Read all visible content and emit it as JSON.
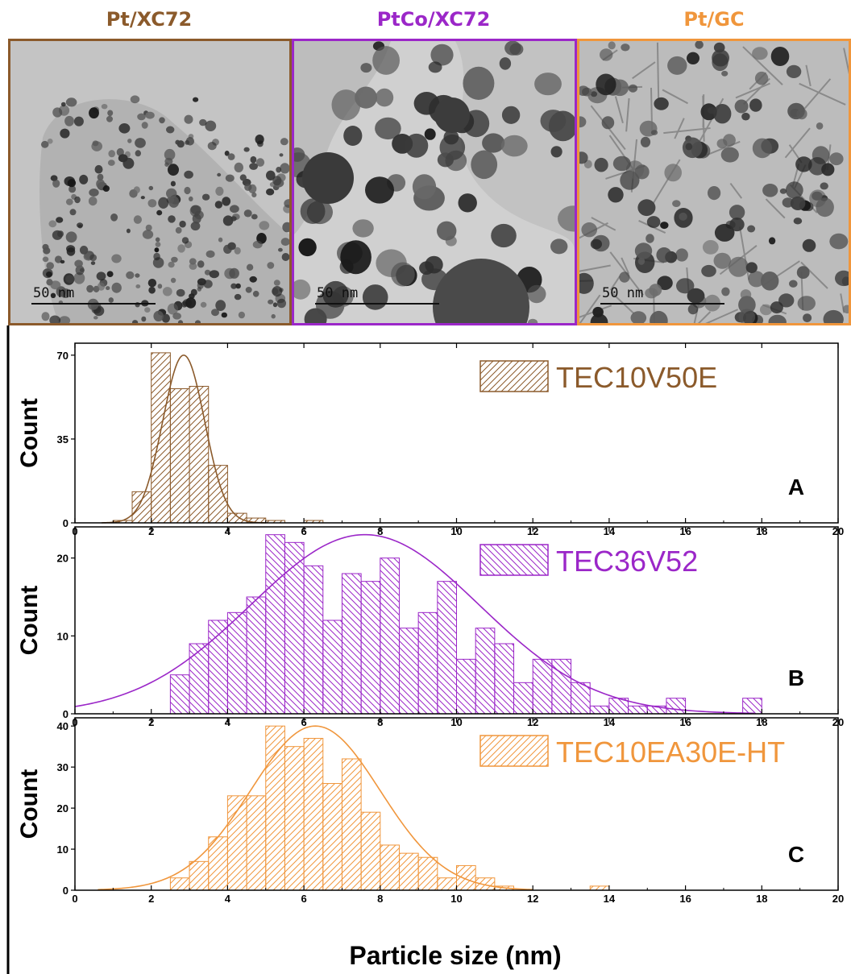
{
  "tem_panels": [
    {
      "title": "Pt/XC72",
      "color": "#8B5A2B",
      "scale_label": "50 nm"
    },
    {
      "title": "PtCo/XC72",
      "color": "#9B27C8",
      "scale_label": "50 nm"
    },
    {
      "title": "Pt/GC",
      "color": "#F0963C",
      "scale_label": "50 nm"
    }
  ],
  "chart_data": [
    {
      "type": "bar",
      "panel_label": "A",
      "legend": "TEC10V50E",
      "color": "#8B5A2B",
      "ylabel": "Count",
      "xlim": [
        0,
        20
      ],
      "ylim": [
        0,
        75
      ],
      "yticks": [
        0,
        35,
        70
      ],
      "bin_width": 0.5,
      "bins": [
        {
          "x": 1.0,
          "y": 1
        },
        {
          "x": 1.5,
          "y": 13
        },
        {
          "x": 2.0,
          "y": 71
        },
        {
          "x": 2.5,
          "y": 56
        },
        {
          "x": 3.0,
          "y": 57
        },
        {
          "x": 3.5,
          "y": 24
        },
        {
          "x": 4.0,
          "y": 4
        },
        {
          "x": 4.5,
          "y": 2
        },
        {
          "x": 5.0,
          "y": 1
        },
        {
          "x": 6.0,
          "y": 1
        }
      ],
      "fit": {
        "mean": 2.85,
        "sigma": 0.55,
        "amplitude": 70,
        "range": [
          0.7,
          5.0
        ]
      }
    },
    {
      "type": "bar",
      "panel_label": "B",
      "legend": "TEC36V52",
      "color": "#9B27C8",
      "ylabel": "Count",
      "xlim": [
        0,
        20
      ],
      "ylim": [
        0,
        24
      ],
      "yticks": [
        0,
        10,
        20
      ],
      "bin_width": 0.5,
      "bins": [
        {
          "x": 2.5,
          "y": 5
        },
        {
          "x": 3.0,
          "y": 9
        },
        {
          "x": 3.5,
          "y": 12
        },
        {
          "x": 4.0,
          "y": 13
        },
        {
          "x": 4.5,
          "y": 15
        },
        {
          "x": 5.0,
          "y": 23
        },
        {
          "x": 5.5,
          "y": 22
        },
        {
          "x": 6.0,
          "y": 19
        },
        {
          "x": 6.5,
          "y": 12
        },
        {
          "x": 7.0,
          "y": 18
        },
        {
          "x": 7.5,
          "y": 17
        },
        {
          "x": 8.0,
          "y": 20
        },
        {
          "x": 8.5,
          "y": 11
        },
        {
          "x": 9.0,
          "y": 13
        },
        {
          "x": 9.5,
          "y": 17
        },
        {
          "x": 10.0,
          "y": 7
        },
        {
          "x": 10.5,
          "y": 11
        },
        {
          "x": 11.0,
          "y": 9
        },
        {
          "x": 11.5,
          "y": 4
        },
        {
          "x": 12.0,
          "y": 7
        },
        {
          "x": 12.5,
          "y": 7
        },
        {
          "x": 13.0,
          "y": 4
        },
        {
          "x": 13.5,
          "y": 1
        },
        {
          "x": 14.0,
          "y": 2
        },
        {
          "x": 14.5,
          "y": 1
        },
        {
          "x": 15.0,
          "y": 1
        },
        {
          "x": 15.5,
          "y": 2
        },
        {
          "x": 17.5,
          "y": 2
        }
      ],
      "fit": {
        "mean": 7.6,
        "sigma": 3.0,
        "amplitude": 23,
        "range": [
          0,
          17.8
        ]
      }
    },
    {
      "type": "bar",
      "panel_label": "C",
      "legend": "TEC10EA30E-HT",
      "color": "#F0963C",
      "ylabel": "Count",
      "xlim": [
        0,
        20
      ],
      "ylim": [
        0,
        42
      ],
      "yticks": [
        0,
        10,
        20,
        30,
        40
      ],
      "bin_width": 0.5,
      "bins": [
        {
          "x": 2.5,
          "y": 3
        },
        {
          "x": 3.0,
          "y": 7
        },
        {
          "x": 3.5,
          "y": 13
        },
        {
          "x": 4.0,
          "y": 23
        },
        {
          "x": 4.5,
          "y": 23
        },
        {
          "x": 5.0,
          "y": 40
        },
        {
          "x": 5.5,
          "y": 35
        },
        {
          "x": 6.0,
          "y": 37
        },
        {
          "x": 6.5,
          "y": 26
        },
        {
          "x": 7.0,
          "y": 32
        },
        {
          "x": 7.5,
          "y": 19
        },
        {
          "x": 8.0,
          "y": 11
        },
        {
          "x": 8.5,
          "y": 9
        },
        {
          "x": 9.0,
          "y": 8
        },
        {
          "x": 9.5,
          "y": 3
        },
        {
          "x": 10.0,
          "y": 6
        },
        {
          "x": 10.5,
          "y": 3
        },
        {
          "x": 11.0,
          "y": 1
        },
        {
          "x": 13.5,
          "y": 1
        }
      ],
      "fit": {
        "mean": 6.3,
        "sigma": 1.7,
        "amplitude": 40,
        "range": [
          0.6,
          12.0
        ]
      }
    }
  ],
  "xticks": [
    0,
    2,
    4,
    6,
    8,
    10,
    12,
    14,
    16,
    18,
    20
  ],
  "xlabel": "Particle size (nm)"
}
